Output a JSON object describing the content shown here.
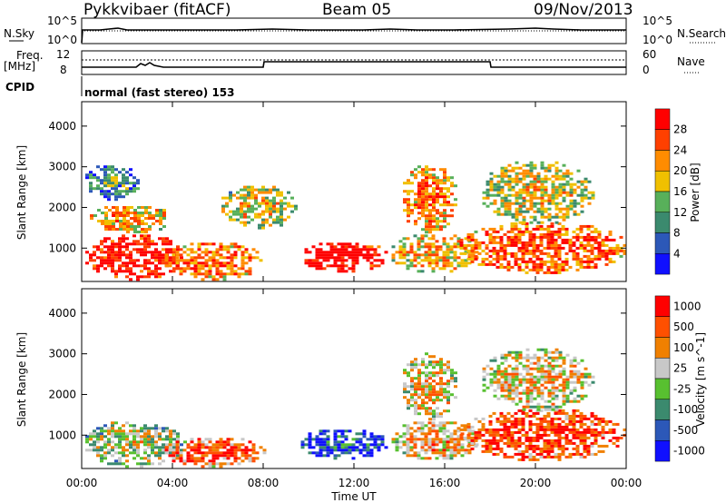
{
  "header": {
    "title": "Pykkvibaer (fitACF)",
    "beam": "Beam 05",
    "date": "09/Nov/2013"
  },
  "nsky_panel": {
    "left_label": "N.Sky",
    "right_label": "N.Search",
    "left_ticks": [
      "10^5",
      "10^0"
    ],
    "right_ticks": [
      "10^5",
      "10^0"
    ]
  },
  "freq_panel": {
    "left_label_1": "Freq.",
    "left_label_2": "[MHz]",
    "left_ticks": [
      "12",
      "8"
    ],
    "right_ticks": [
      "60",
      "0"
    ],
    "right_label": "Nave"
  },
  "cpid": {
    "label": "CPID",
    "value": "normal (fast stereo) 153"
  },
  "x_axis": {
    "label": "Time UT",
    "ticks": [
      "00:00",
      "04:00",
      "08:00",
      "12:00",
      "16:00",
      "20:00",
      "00:00"
    ]
  },
  "chart_data": [
    {
      "type": "heatmap",
      "panel": "power",
      "xlabel": "Time UT",
      "ylabel": "Slant Range [km]",
      "x_ticks": [
        "00:00",
        "04:00",
        "08:00",
        "12:00",
        "16:00",
        "20:00",
        "00:00"
      ],
      "y_ticks": [
        1000,
        2000,
        3000,
        4000
      ],
      "xlim": [
        0,
        24
      ],
      "ylim": [
        180,
        4600
      ],
      "colorbar": {
        "label": "Power [dB]",
        "ticks": [
          "4",
          "8",
          "12",
          "16",
          "20",
          "24",
          "28"
        ],
        "colors": [
          "#1010ff",
          "#2c58b8",
          "#3b8a6e",
          "#58b05a",
          "#f0c000",
          "#ff8c00",
          "#ff4000",
          "#ff0000"
        ]
      },
      "blobs": [
        {
          "t0": 0.0,
          "t1": 4.5,
          "r0": 250,
          "r1": 1400,
          "level": 0.85
        },
        {
          "t0": 0.2,
          "t1": 4.0,
          "r0": 1400,
          "r1": 2100,
          "level": 0.55
        },
        {
          "t0": 3.5,
          "t1": 8.0,
          "r0": 250,
          "r1": 1200,
          "level": 0.65
        },
        {
          "t0": 6.0,
          "t1": 9.5,
          "r0": 1500,
          "r1": 2600,
          "level": 0.45
        },
        {
          "t0": 9.5,
          "t1": 13.5,
          "r0": 450,
          "r1": 1200,
          "level": 0.9
        },
        {
          "t0": 13.5,
          "t1": 17.5,
          "r0": 400,
          "r1": 1400,
          "level": 0.5
        },
        {
          "t0": 14.0,
          "t1": 16.5,
          "r0": 1400,
          "r1": 3100,
          "level": 0.6
        },
        {
          "t0": 16.5,
          "t1": 24.0,
          "r0": 400,
          "r1": 1700,
          "level": 0.7
        },
        {
          "t0": 17.5,
          "t1": 22.5,
          "r0": 1600,
          "r1": 3200,
          "level": 0.45
        },
        {
          "t0": 0.0,
          "t1": 2.5,
          "r0": 2200,
          "r1": 3100,
          "level": 0.2
        }
      ]
    },
    {
      "type": "heatmap",
      "panel": "velocity",
      "xlabel": "Time UT",
      "ylabel": "Slant Range [km]",
      "x_ticks": [
        "00:00",
        "04:00",
        "08:00",
        "12:00",
        "16:00",
        "20:00",
        "00:00"
      ],
      "y_ticks": [
        1000,
        2000,
        3000,
        4000
      ],
      "xlim": [
        0,
        24
      ],
      "ylim": [
        180,
        4600
      ],
      "colorbar": {
        "label": "Velocity [m s^-1]",
        "ticks": [
          "1000",
          "500",
          "100",
          "25",
          "-25",
          "-100",
          "-500",
          "-1000"
        ],
        "colors": [
          "#1010ff",
          "#2c58b8",
          "#3b8a6e",
          "#58c030",
          "#c8c8c8",
          "#f08000",
          "#ff5000",
          "#ff0000"
        ]
      },
      "blobs": [
        {
          "t0": 0.0,
          "t1": 4.5,
          "r0": 250,
          "r1": 1400,
          "level": 0.4
        },
        {
          "t0": 3.5,
          "t1": 8.0,
          "r0": 250,
          "r1": 1000,
          "level": 0.7
        },
        {
          "t0": 9.5,
          "t1": 13.5,
          "r0": 450,
          "r1": 1200,
          "level": 0.1
        },
        {
          "t0": 13.5,
          "t1": 17.5,
          "r0": 400,
          "r1": 1400,
          "level": 0.55
        },
        {
          "t0": 14.0,
          "t1": 16.5,
          "r0": 1400,
          "r1": 3100,
          "level": 0.5
        },
        {
          "t0": 16.5,
          "t1": 24.0,
          "r0": 400,
          "r1": 1700,
          "level": 0.75
        },
        {
          "t0": 17.5,
          "t1": 22.5,
          "r0": 1600,
          "r1": 3200,
          "level": 0.5
        }
      ]
    }
  ]
}
